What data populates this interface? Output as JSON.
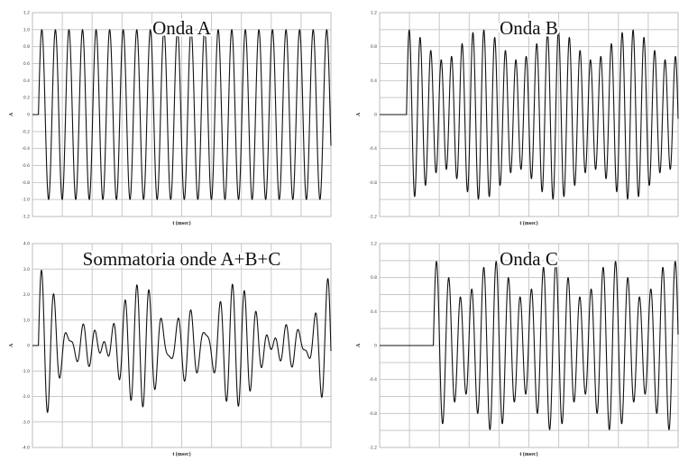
{
  "chart_data": [
    {
      "type": "line",
      "title": "Onda A",
      "xlabel": "t (msec)",
      "ylabel": "A",
      "ylim": [
        -1.2,
        1.2
      ],
      "yticks": [
        "1.2",
        "1.0",
        "0.8",
        "0.6",
        "0.4",
        "0.2",
        "0",
        "-0.2",
        "-0.4",
        "-0.6",
        "-0.8",
        "-1.0",
        "-1.2"
      ],
      "x_gridlines": 10,
      "grid": true,
      "onset_fraction": 0.02,
      "series": [
        {
          "components": [
            {
              "amplitude": 1.0,
              "cycles": 22
            }
          ]
        }
      ]
    },
    {
      "type": "line",
      "title": "Onda B",
      "xlabel": "t (msec)",
      "ylabel": "A",
      "ylim": [
        -1.2,
        1.2
      ],
      "yticks": [
        "1.2",
        "",
        "0.8",
        "",
        "0.4",
        "",
        "0",
        "",
        "-0.4",
        "",
        "-0.8",
        "",
        "-1.2"
      ],
      "x_gridlines": 10,
      "grid": true,
      "onset_fraction": 0.09,
      "series": [
        {
          "components": [
            {
              "amplitude": 0.82,
              "cycles": 28
            },
            {
              "amplitude": 0.18,
              "cycles": 24
            }
          ]
        }
      ]
    },
    {
      "type": "line",
      "title": "Sommatoria onde A+B+C",
      "xlabel": "t (msec)",
      "ylabel": "A",
      "ylim": [
        -4.0,
        4.0
      ],
      "yticks": [
        "4.0",
        "3.0",
        "2.0",
        "1.0",
        "0",
        "-1.0",
        "-2.0",
        "-3.0",
        "-4.0"
      ],
      "x_gridlines": 10,
      "grid": true,
      "onset_fraction": 0.02,
      "series": [
        {
          "components": [
            {
              "amplitude": 1.0,
              "cycles": 22
            },
            {
              "amplitude": 0.82,
              "cycles": 28
            },
            {
              "amplitude": 0.18,
              "cycles": 24
            },
            {
              "amplitude": 0.78,
              "cycles": 25
            },
            {
              "amplitude": 0.22,
              "cycles": 20
            }
          ]
        }
      ]
    },
    {
      "type": "line",
      "title": "Onda C",
      "xlabel": "t (msec)",
      "ylabel": "A",
      "ylim": [
        -1.2,
        1.2
      ],
      "yticks": [
        "1.2",
        "",
        "0.8",
        "",
        "0.4",
        "",
        "0",
        "",
        "-0.4",
        "",
        "-0.8",
        "",
        "-1.2"
      ],
      "x_gridlines": 10,
      "grid": true,
      "onset_fraction": 0.18,
      "series": [
        {
          "components": [
            {
              "amplitude": 0.78,
              "cycles": 25
            },
            {
              "amplitude": 0.22,
              "cycles": 20
            }
          ]
        }
      ]
    }
  ]
}
